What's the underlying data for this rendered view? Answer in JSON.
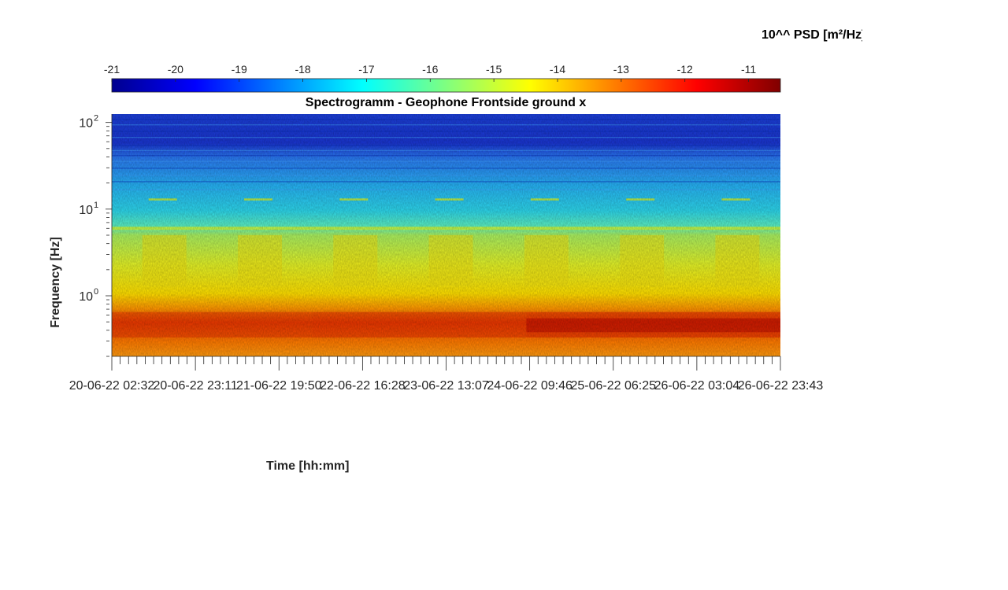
{
  "chart_data": {
    "type": "heatmap",
    "title": "Spectrogramm - Geophone Frontside ground x",
    "xlabel": "Time [hh:mm]",
    "ylabel": "Frequency [Hz]",
    "x_scale": "time",
    "y_scale": "log",
    "x_tick_labels": [
      "20-06-22 02:32",
      "20-06-22 23:11",
      "21-06-22 19:50",
      "22-06-22 16:28",
      "23-06-22 13:07",
      "24-06-22 09:46",
      "25-06-22 06:25",
      "26-06-22 03:04",
      "26-06-22 23:43"
    ],
    "y_ticks": [
      {
        "exponent": "0",
        "value": 1
      },
      {
        "exponent": "1",
        "value": 10
      },
      {
        "exponent": "2",
        "value": 100
      }
    ],
    "y_tick_base": "10",
    "ylim": [
      0.2,
      125
    ],
    "colorbar": {
      "label": "10^^ PSD [m²/Hz]",
      "colormap": "jet",
      "ticks": [
        "-21",
        "-20",
        "-19",
        "-18",
        "-17",
        "-16",
        "-15",
        "-14",
        "-13",
        "-12",
        "-11"
      ],
      "range": [
        -21,
        -10.5
      ],
      "location": "top"
    },
    "spectral_features": {
      "persistent_line_hz": 6,
      "daily_activity_windows": 7,
      "low_frequency_maximum_log10_psd": -11
    }
  },
  "colors": {
    "axis": "#262626",
    "background": "#ffffff"
  }
}
